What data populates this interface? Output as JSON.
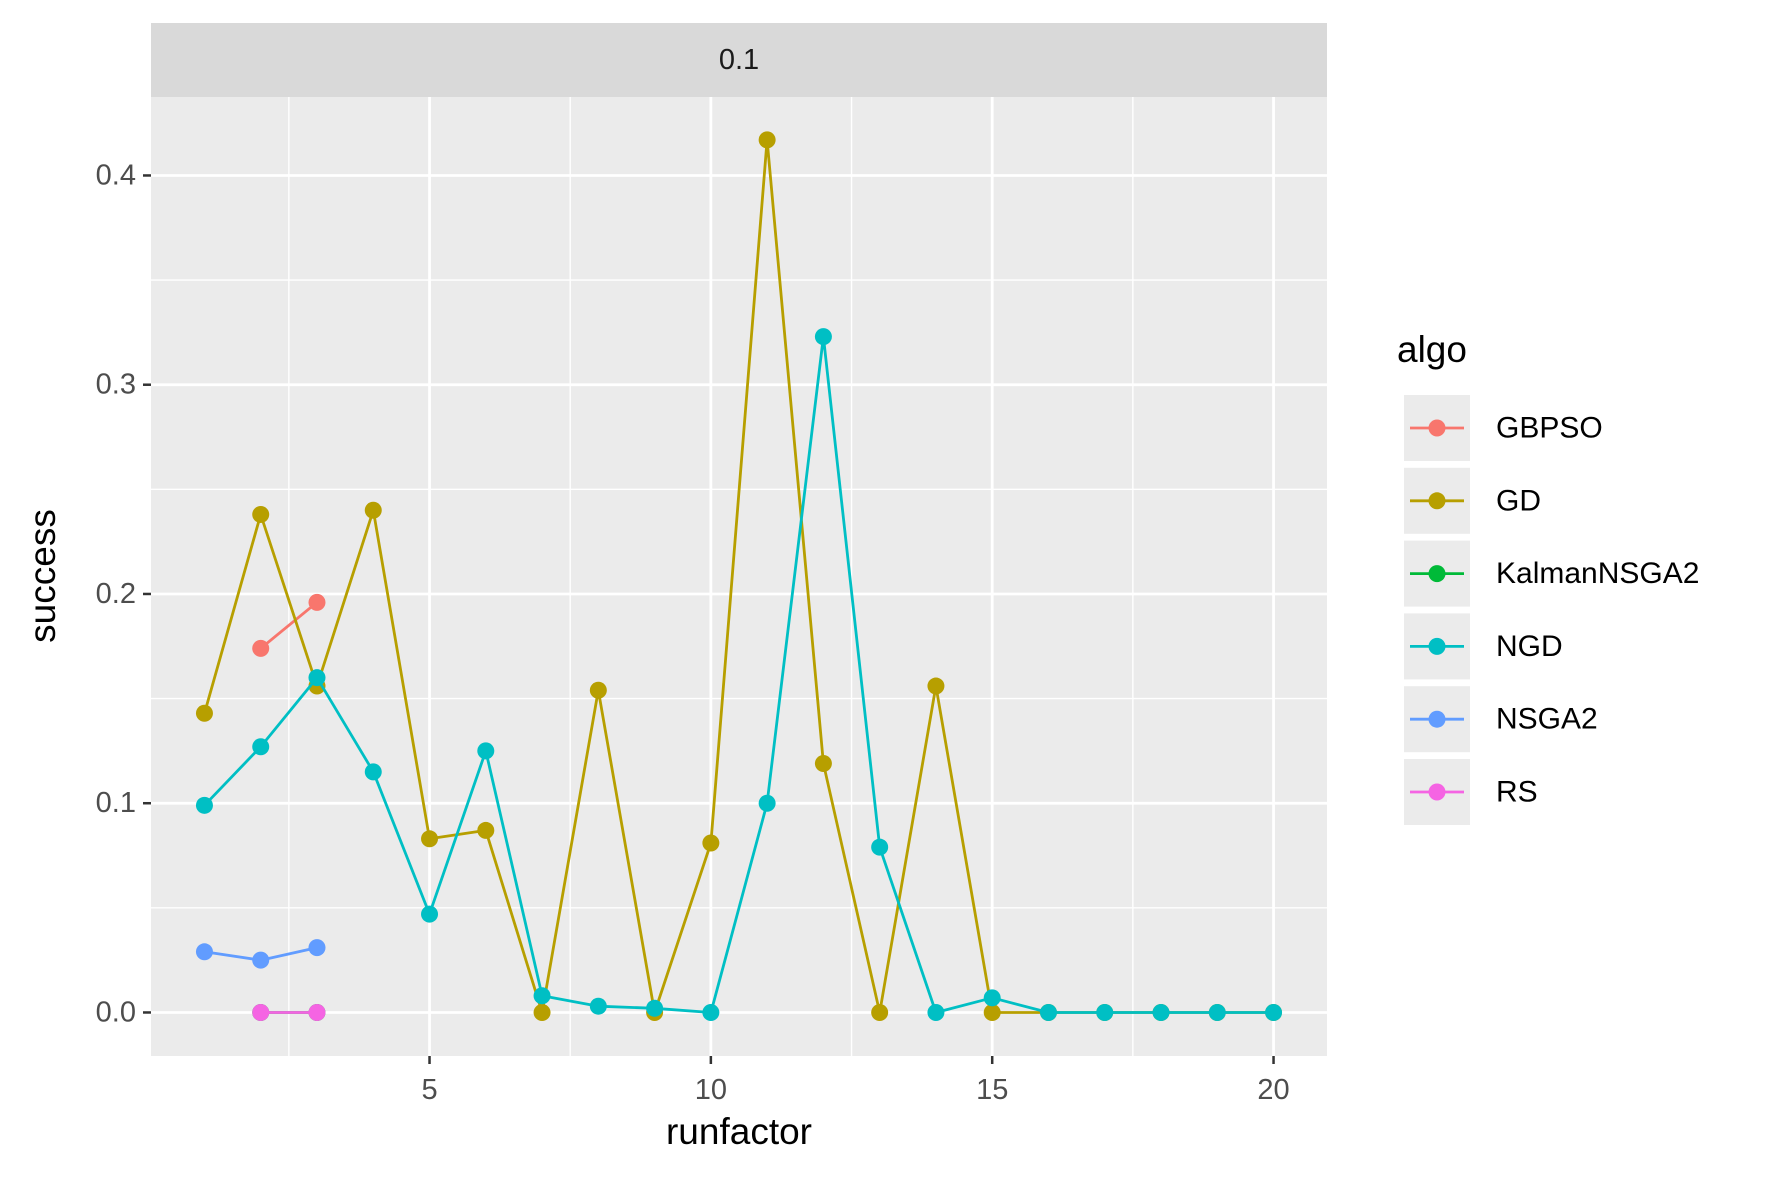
{
  "chart_data": {
    "type": "line",
    "facet_label": "0.1",
    "xlabel": "runfactor",
    "ylabel": "success",
    "xlim": [
      0.05,
      20.95
    ],
    "ylim": [
      -0.0208,
      0.4375
    ],
    "x_ticks": [
      5,
      10,
      15,
      20
    ],
    "x_tick_labels": [
      "5",
      "10",
      "15",
      "20"
    ],
    "y_ticks": [
      0,
      0.1,
      0.2,
      0.3,
      0.4
    ],
    "y_tick_labels": [
      "0.0",
      "0.1",
      "0.2",
      "0.3",
      "0.4"
    ],
    "grid": true,
    "legend": {
      "title": "algo",
      "position": "right"
    },
    "series": [
      {
        "name": "GBPSO",
        "color": "#F8766D",
        "points": [
          [
            2,
            0.174
          ],
          [
            3,
            0.196
          ]
        ]
      },
      {
        "name": "GD",
        "color": "#B79F00",
        "points": [
          [
            1,
            0.143
          ],
          [
            2,
            0.238
          ],
          [
            3,
            0.156
          ],
          [
            4,
            0.24
          ],
          [
            5,
            0.083
          ],
          [
            6,
            0.087
          ],
          [
            7,
            0.0
          ],
          [
            8,
            0.154
          ],
          [
            9,
            0.0
          ],
          [
            10,
            0.081
          ],
          [
            11,
            0.417
          ],
          [
            12,
            0.119
          ],
          [
            13,
            0.0
          ],
          [
            14,
            0.156
          ],
          [
            15,
            0.0
          ],
          [
            16,
            0.0
          ],
          [
            17,
            0.0
          ],
          [
            18,
            0.0
          ],
          [
            19,
            0.0
          ],
          [
            20,
            0.0
          ]
        ]
      },
      {
        "name": "KalmanNSGA2",
        "color": "#00BA38",
        "points": [
          [
            2,
            0.0
          ],
          [
            3,
            0.0
          ]
        ]
      },
      {
        "name": "NGD",
        "color": "#00BFC4",
        "points": [
          [
            1,
            0.099
          ],
          [
            2,
            0.127
          ],
          [
            3,
            0.16
          ],
          [
            4,
            0.115
          ],
          [
            5,
            0.047
          ],
          [
            6,
            0.125
          ],
          [
            7,
            0.008
          ],
          [
            8,
            0.003
          ],
          [
            9,
            0.002
          ],
          [
            10,
            0.0
          ],
          [
            11,
            0.1
          ],
          [
            12,
            0.323
          ],
          [
            13,
            0.079
          ],
          [
            14,
            0.0
          ],
          [
            15,
            0.007
          ],
          [
            16,
            0.0
          ],
          [
            17,
            0.0
          ],
          [
            18,
            0.0
          ],
          [
            19,
            0.0
          ],
          [
            20,
            0.0
          ]
        ]
      },
      {
        "name": "NSGA2",
        "color": "#619CFF",
        "points": [
          [
            1,
            0.029
          ],
          [
            2,
            0.025
          ],
          [
            3,
            0.031
          ]
        ]
      },
      {
        "name": "RS",
        "color": "#F564E3",
        "points": [
          [
            2,
            0.0
          ],
          [
            3,
            0.0
          ]
        ]
      }
    ]
  }
}
